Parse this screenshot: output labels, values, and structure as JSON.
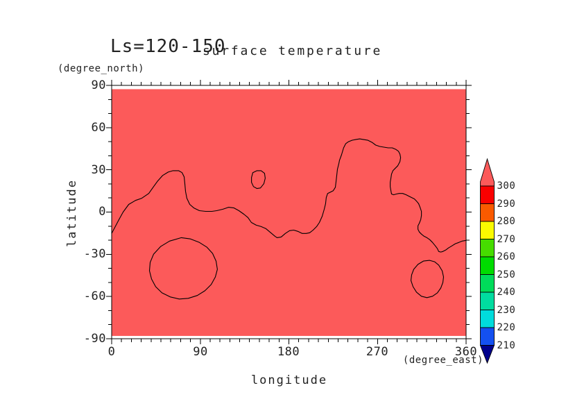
{
  "header": {
    "annotation": "Ls=120-150",
    "title": "surface temperature"
  },
  "axes": {
    "x": {
      "label": "longitude",
      "unit": "(degree_east)",
      "min": 0,
      "max": 360,
      "major_ticks": [
        0,
        90,
        180,
        270,
        360
      ],
      "minor_interval": 10
    },
    "y": {
      "label": "latitude",
      "unit": "(degree_north)",
      "min": -90,
      "max": 90,
      "major_ticks": [
        90,
        60,
        30,
        0,
        -30,
        -60,
        -90
      ],
      "minor_interval": 10
    }
  },
  "colorbar": {
    "values": [
      300,
      290,
      280,
      270,
      260,
      250,
      240,
      230,
      220,
      210
    ],
    "band_colors": [
      "#FA0000",
      "#FA5A00",
      "#FAFA00",
      "#46DC00",
      "#00DC00",
      "#00DC5A",
      "#00DCA0",
      "#00DCDC",
      "#1450F0"
    ],
    "over_color": "#FC5A5A",
    "under_color": "#00008C",
    "outline_color": "#000000"
  },
  "chart_data": {
    "type": "heatmap",
    "subtype": "filled-contour-map-with-contour-lines",
    "title": "surface temperature",
    "annotation": "Ls=120-150",
    "xlabel": "longitude",
    "xunit": "(degree_east)",
    "ylabel": "latitude",
    "yunit": "(degree_north)",
    "xlim": [
      0,
      360
    ],
    "ylim": [
      -90,
      90
    ],
    "x_major_ticks": [
      0,
      90,
      180,
      270,
      360
    ],
    "x_minor_interval": 10,
    "y_major_ticks": [
      90,
      60,
      30,
      0,
      -30,
      -60,
      -90
    ],
    "y_minor_interval": 10,
    "grid": false,
    "legend_position": "right-colorbar",
    "fill_note": "entire shaded field is a single warm band (salmon); black contour lines overlay it",
    "fill_color": "#FC5A5A",
    "shade_lat_range": [
      -88,
      87.3
    ],
    "contour_color": "#000000",
    "contours": [
      {
        "name": "main-wavy-contour",
        "closed": false,
        "points": [
          [
            0,
            -15.2
          ],
          [
            7.4,
            -5.4
          ],
          [
            11.6,
            0
          ],
          [
            17.3,
            5.4
          ],
          [
            24.3,
            8.3
          ],
          [
            30.6,
            9.8
          ],
          [
            37.7,
            13.2
          ],
          [
            42.6,
            18.1
          ],
          [
            46.8,
            22.1
          ],
          [
            51.8,
            26.0
          ],
          [
            57.4,
            28.4
          ],
          [
            62.3,
            29.4
          ],
          [
            68.0,
            29.4
          ],
          [
            71.5,
            28.0
          ],
          [
            73.6,
            25.0
          ],
          [
            74.3,
            20.1
          ],
          [
            75.0,
            14.7
          ],
          [
            76.4,
            9.8
          ],
          [
            79.3,
            5.4
          ],
          [
            83.5,
            2.9
          ],
          [
            89.1,
            1.0
          ],
          [
            95.4,
            0.5
          ],
          [
            101.8,
            0.5
          ],
          [
            106.7,
            1.0
          ],
          [
            113.0,
            2.0
          ],
          [
            118.7,
            3.4
          ],
          [
            124.3,
            2.9
          ],
          [
            129.2,
            1.0
          ],
          [
            134.2,
            -1.5
          ],
          [
            138.4,
            -3.9
          ],
          [
            141.9,
            -7.4
          ],
          [
            146.8,
            -9.3
          ],
          [
            151.8,
            -10.3
          ],
          [
            156.7,
            -11.8
          ],
          [
            161.6,
            -14.7
          ],
          [
            165.9,
            -17.2
          ],
          [
            168.0,
            -18.2
          ],
          [
            172.2,
            -17.7
          ],
          [
            176.4,
            -15.2
          ],
          [
            180.7,
            -13.2
          ],
          [
            184.9,
            -12.8
          ],
          [
            189.1,
            -13.7
          ],
          [
            193.4,
            -15.2
          ],
          [
            197.6,
            -15.2
          ],
          [
            201.1,
            -14.7
          ],
          [
            204.6,
            -12.8
          ],
          [
            208.2,
            -10.3
          ],
          [
            211.0,
            -7.4
          ],
          [
            213.8,
            -3.0
          ],
          [
            215.9,
            2.0
          ],
          [
            217.3,
            5.9
          ],
          [
            218.0,
            10.3
          ],
          [
            219.4,
            13.2
          ],
          [
            222.3,
            14.2
          ],
          [
            225.1,
            15.2
          ],
          [
            227.2,
            17.6
          ],
          [
            227.9,
            21.6
          ],
          [
            228.6,
            26.0
          ],
          [
            229.3,
            30.4
          ],
          [
            230.7,
            34.3
          ],
          [
            231.4,
            36.8
          ],
          [
            233.5,
            40.7
          ],
          [
            235.6,
            45.6
          ],
          [
            237.8,
            48.6
          ],
          [
            240.6,
            50.0
          ],
          [
            244.1,
            51.0
          ],
          [
            247.6,
            51.5
          ],
          [
            251.9,
            52.0
          ],
          [
            256.1,
            51.5
          ],
          [
            260.3,
            51.0
          ],
          [
            264.5,
            49.5
          ],
          [
            268.1,
            47.6
          ],
          [
            272.3,
            46.6
          ],
          [
            276.5,
            46.1
          ],
          [
            280.8,
            45.6
          ],
          [
            285.0,
            45.6
          ],
          [
            288.5,
            44.6
          ],
          [
            291.3,
            43.2
          ],
          [
            292.8,
            41.2
          ],
          [
            293.5,
            38.7
          ],
          [
            292.8,
            35.8
          ],
          [
            290.6,
            32.9
          ],
          [
            287.8,
            30.9
          ],
          [
            285.7,
            29.4
          ],
          [
            284.3,
            27.0
          ],
          [
            283.6,
            24.0
          ],
          [
            282.9,
            21.1
          ],
          [
            282.9,
            18.1
          ],
          [
            283.6,
            15.2
          ],
          [
            284.3,
            12.8
          ],
          [
            286.4,
            12.3
          ],
          [
            289.2,
            12.8
          ],
          [
            292.0,
            13.2
          ],
          [
            295.6,
            13.2
          ],
          [
            299.1,
            12.3
          ],
          [
            301.9,
            11.3
          ],
          [
            304.7,
            10.3
          ],
          [
            307.5,
            9.3
          ],
          [
            309.6,
            7.8
          ],
          [
            311.8,
            5.9
          ],
          [
            313.2,
            3.4
          ],
          [
            314.6,
            0.5
          ],
          [
            314.6,
            -2.5
          ],
          [
            313.9,
            -5.4
          ],
          [
            312.5,
            -7.9
          ],
          [
            311.1,
            -9.8
          ],
          [
            311.1,
            -12.3
          ],
          [
            312.5,
            -14.2
          ],
          [
            314.6,
            -15.7
          ],
          [
            317.4,
            -17.2
          ],
          [
            320.2,
            -18.2
          ],
          [
            323.0,
            -19.6
          ],
          [
            325.9,
            -21.6
          ],
          [
            328.7,
            -24.0
          ],
          [
            330.8,
            -26.0
          ],
          [
            332.2,
            -28.0
          ],
          [
            334.3,
            -28.4
          ],
          [
            336.4,
            -28.0
          ],
          [
            339.2,
            -27.0
          ],
          [
            342.1,
            -25.5
          ],
          [
            345.6,
            -24.0
          ],
          [
            349.1,
            -22.5
          ],
          [
            352.6,
            -21.6
          ],
          [
            356.1,
            -20.6
          ],
          [
            360,
            -20.1
          ]
        ]
      },
      {
        "name": "small-closed-loop-center",
        "closed": true,
        "points": [
          [
            142.0,
            24.5
          ],
          [
            143.4,
            28.0
          ],
          [
            147.6,
            29.4
          ],
          [
            151.8,
            29.4
          ],
          [
            155.3,
            27.5
          ],
          [
            156.0,
            24.0
          ],
          [
            154.6,
            20.1
          ],
          [
            151.1,
            17.1
          ],
          [
            147.6,
            16.7
          ],
          [
            144.1,
            18.1
          ],
          [
            142.0,
            21.1
          ]
        ]
      },
      {
        "name": "large-closed-loop-southwest",
        "closed": true,
        "points": [
          [
            70.8,
            -18.2
          ],
          [
            58.8,
            -20.6
          ],
          [
            49.7,
            -24.5
          ],
          [
            42.6,
            -29.9
          ],
          [
            39.1,
            -35.8
          ],
          [
            38.4,
            -41.7
          ],
          [
            40.5,
            -47.6
          ],
          [
            44.7,
            -53.0
          ],
          [
            51.1,
            -57.4
          ],
          [
            59.5,
            -60.3
          ],
          [
            68.7,
            -61.8
          ],
          [
            77.8,
            -61.3
          ],
          [
            87.0,
            -59.3
          ],
          [
            94.7,
            -55.9
          ],
          [
            101.1,
            -51.5
          ],
          [
            105.3,
            -46.1
          ],
          [
            107.4,
            -40.7
          ],
          [
            106.0,
            -34.8
          ],
          [
            102.5,
            -29.4
          ],
          [
            96.8,
            -25.0
          ],
          [
            89.1,
            -21.6
          ],
          [
            80.0,
            -19.1
          ]
        ]
      },
      {
        "name": "small-closed-loop-southeast",
        "closed": true,
        "points": [
          [
            323.0,
            -34.3
          ],
          [
            316.7,
            -34.8
          ],
          [
            311.1,
            -37.2
          ],
          [
            306.8,
            -40.7
          ],
          [
            304.7,
            -44.6
          ],
          [
            304.0,
            -48.6
          ],
          [
            306.1,
            -53.0
          ],
          [
            309.6,
            -56.9
          ],
          [
            314.6,
            -59.8
          ],
          [
            320.2,
            -60.8
          ],
          [
            325.9,
            -59.8
          ],
          [
            330.8,
            -57.4
          ],
          [
            334.3,
            -54.0
          ],
          [
            336.4,
            -50.1
          ],
          [
            337.1,
            -46.1
          ],
          [
            335.7,
            -41.7
          ],
          [
            332.2,
            -37.7
          ],
          [
            328.0,
            -35.3
          ]
        ]
      }
    ]
  }
}
